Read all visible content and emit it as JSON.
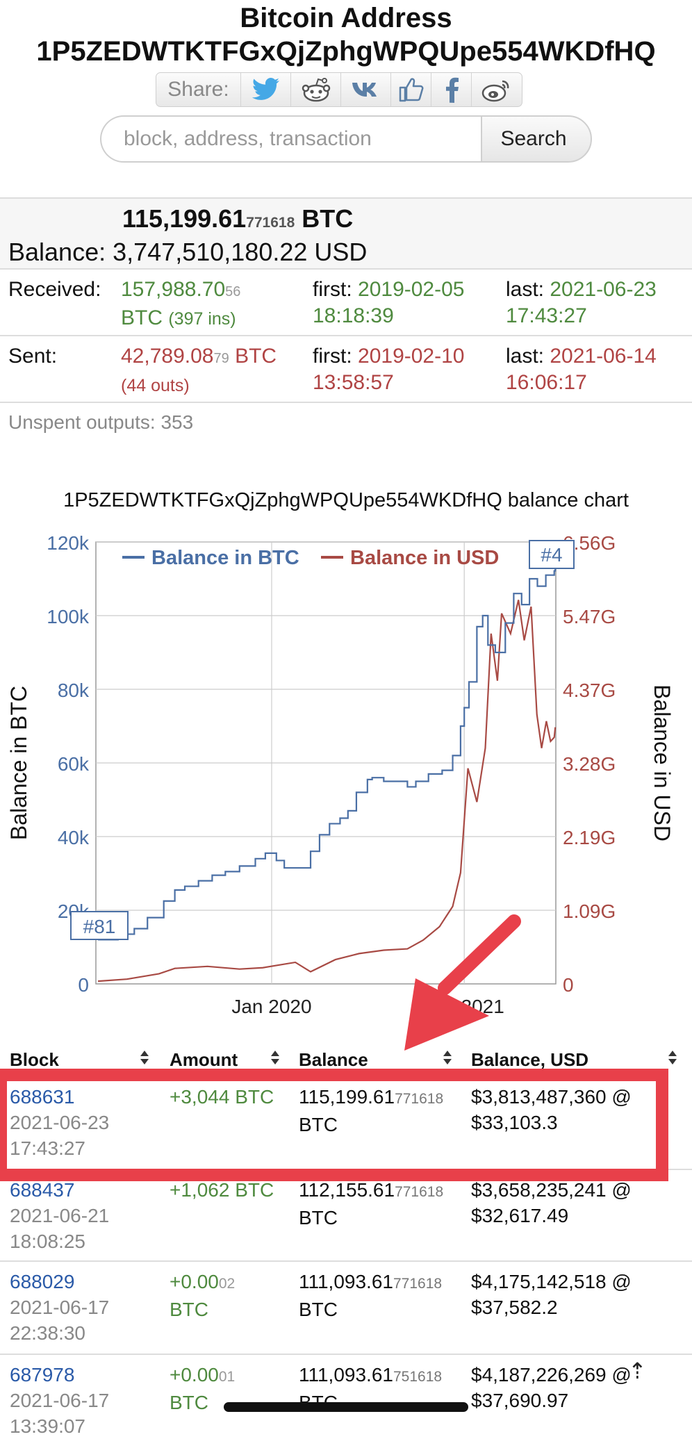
{
  "page": {
    "title_line1": "Bitcoin Address",
    "title_line2": "1P5ZEDWTKTFGxQjZphgWPQUpe554WKDfHQ"
  },
  "share": {
    "label": "Share:",
    "icons": [
      "twitter-icon",
      "reddit-icon",
      "vk-icon",
      "like-icon",
      "facebook-icon",
      "weibo-icon"
    ]
  },
  "search": {
    "placeholder": "block, address, transaction",
    "button": "Search"
  },
  "balance": {
    "btc_main": "115,199.61",
    "btc_small": "771618",
    "btc_unit": "BTC",
    "label": "Balance:",
    "usd": "3,747,510,180.22 USD"
  },
  "received": {
    "label": "Received:",
    "amount_main": "157,988.70",
    "amount_small": "56",
    "unit": "BTC",
    "count": "(397 ins)",
    "first_label": "first:",
    "first_date": "2019-02-05",
    "first_time": "18:18:39",
    "last_label": "last:",
    "last_date": "2021-06-23",
    "last_time": "17:43:27"
  },
  "sent": {
    "label": "Sent:",
    "amount_main": "42,789.08",
    "amount_small": "79",
    "unit": "BTC",
    "count": "(44 outs)",
    "first_label": "first:",
    "first_date": "2019-02-10",
    "first_time": "13:58:57",
    "last_label": "last:",
    "last_date": "2021-06-14",
    "last_time": "16:06:17"
  },
  "unspent": "Unspent outputs: 353",
  "chart_title": "1P5ZEDWTKTFGxQjZphgWPQUpe554WKDfHQ balance chart",
  "colors": {
    "btc": "#4a6fa5",
    "usd": "#a84a44",
    "arrow": "#e8404a",
    "link": "#2a5aa8",
    "green": "#4f8a3f"
  },
  "chart_data": {
    "type": "line",
    "title": "1P5ZEDWTKTFGxQjZphgWPQUpe554WKDfHQ balance chart",
    "ylabel": "Balance in BTC",
    "y2label": "Balance in USD",
    "legend": [
      "Balance in BTC",
      "Balance in USD"
    ],
    "legend_position": "top",
    "grid": true,
    "x_ticks": [
      "Jan 2020",
      "Jan 2021"
    ],
    "y_ticks": [
      "0",
      "20k",
      "40k",
      "60k",
      "80k",
      "100k",
      "120k"
    ],
    "y2_ticks": [
      "0",
      "1.09G",
      "2.19G",
      "3.28G",
      "4.37G",
      "5.47G",
      "6.56G"
    ],
    "ylim": [
      0,
      120000
    ],
    "y2lim": [
      0,
      6.56
    ],
    "markers": [
      "#81",
      "#4"
    ],
    "series": [
      {
        "name": "Balance in BTC",
        "x": [
          "2019-02-05",
          "2019-03-15",
          "2019-04-15",
          "2019-05-10",
          "2019-06-10",
          "2019-07-01",
          "2019-07-20",
          "2019-08-15",
          "2019-09-10",
          "2019-10-05",
          "2019-11-01",
          "2019-12-01",
          "2019-12-20",
          "2020-01-10",
          "2020-01-25",
          "2020-02-10",
          "2020-03-15",
          "2020-04-01",
          "2020-04-20",
          "2020-05-10",
          "2020-05-25",
          "2020-06-10",
          "2020-07-01",
          "2020-07-10",
          "2020-08-01",
          "2020-09-15",
          "2020-10-01",
          "2020-10-25",
          "2020-11-20",
          "2020-12-10",
          "2020-12-25",
          "2021-01-01",
          "2021-01-10",
          "2021-01-25",
          "2021-02-05",
          "2021-02-15",
          "2021-03-01",
          "2021-03-20",
          "2021-04-05",
          "2021-04-20",
          "2021-05-05",
          "2021-05-20",
          "2021-06-05",
          "2021-06-21",
          "2021-06-23"
        ],
        "y": [
          12000,
          13500,
          15000,
          18000,
          22500,
          25500,
          26500,
          28000,
          29500,
          30500,
          32000,
          34000,
          35500,
          33500,
          31500,
          31500,
          36000,
          40500,
          43500,
          45000,
          47000,
          52000,
          55500,
          56000,
          55000,
          53500,
          55000,
          57000,
          58000,
          62000,
          70000,
          75000,
          82000,
          97000,
          100000,
          92000,
          90000,
          98000,
          106000,
          103000,
          110000,
          108000,
          111000,
          112155.61,
          115199.61
        ]
      },
      {
        "name": "Balance in USD",
        "x": [
          "2019-02-05",
          "2019-04-01",
          "2019-06-01",
          "2019-07-01",
          "2019-09-01",
          "2019-11-01",
          "2019-12-15",
          "2020-02-15",
          "2020-03-15",
          "2020-05-01",
          "2020-06-15",
          "2020-08-01",
          "2020-09-15",
          "2020-10-15",
          "2020-11-15",
          "2020-12-10",
          "2020-12-25",
          "2021-01-08",
          "2021-01-25",
          "2021-02-10",
          "2021-02-21",
          "2021-03-05",
          "2021-03-13",
          "2021-03-30",
          "2021-04-14",
          "2021-04-25",
          "2021-05-08",
          "2021-05-19",
          "2021-05-28",
          "2021-06-06",
          "2021-06-14",
          "2021-06-21",
          "2021-06-23"
        ],
        "y": [
          0.04,
          0.07,
          0.15,
          0.23,
          0.26,
          0.22,
          0.24,
          0.32,
          0.18,
          0.36,
          0.45,
          0.5,
          0.52,
          0.65,
          0.85,
          1.15,
          1.65,
          3.2,
          2.7,
          3.5,
          5.2,
          4.5,
          5.5,
          5.2,
          5.7,
          5.1,
          5.6,
          4.0,
          3.5,
          3.9,
          3.6,
          3.66,
          3.81
        ]
      }
    ]
  },
  "table": {
    "headers": {
      "block": "Block",
      "amount": "Amount",
      "balance": "Balance",
      "usd": "Balance, USD"
    },
    "rows": [
      {
        "block": "688631",
        "date": "2021-06-23",
        "time": "17:43:27",
        "amount": "+3,044 BTC",
        "amount_small": "",
        "amount_unit": "",
        "bal_main": "115,199.61",
        "bal_small": "771618",
        "bal_unit": "BTC",
        "usd": "$3,813,487,360 @",
        "rate": "$33,103.3"
      },
      {
        "block": "688437",
        "date": "2021-06-21",
        "time": "18:08:25",
        "amount": "+1,062 BTC",
        "amount_small": "",
        "amount_unit": "",
        "bal_main": "112,155.61",
        "bal_small": "771618",
        "bal_unit": "BTC",
        "usd": "$3,658,235,241 @",
        "rate": "$32,617.49"
      },
      {
        "block": "688029",
        "date": "2021-06-17",
        "time": "22:38:30",
        "amount": "+0.00",
        "amount_small": "02",
        "amount_unit": "BTC",
        "bal_main": "111,093.61",
        "bal_small": "771618",
        "bal_unit": "BTC",
        "usd": "$4,175,142,518 @",
        "rate": "$37,582.2"
      },
      {
        "block": "687978",
        "date": "2021-06-17",
        "time": "13:39:07",
        "amount": "+0.00",
        "amount_small": "01",
        "amount_unit": "BTC",
        "bal_main": "111,093.61",
        "bal_small": "751618",
        "bal_unit": "BTC",
        "usd": "$4,187,226,269 @",
        "rate": "$37,690.97"
      }
    ]
  }
}
